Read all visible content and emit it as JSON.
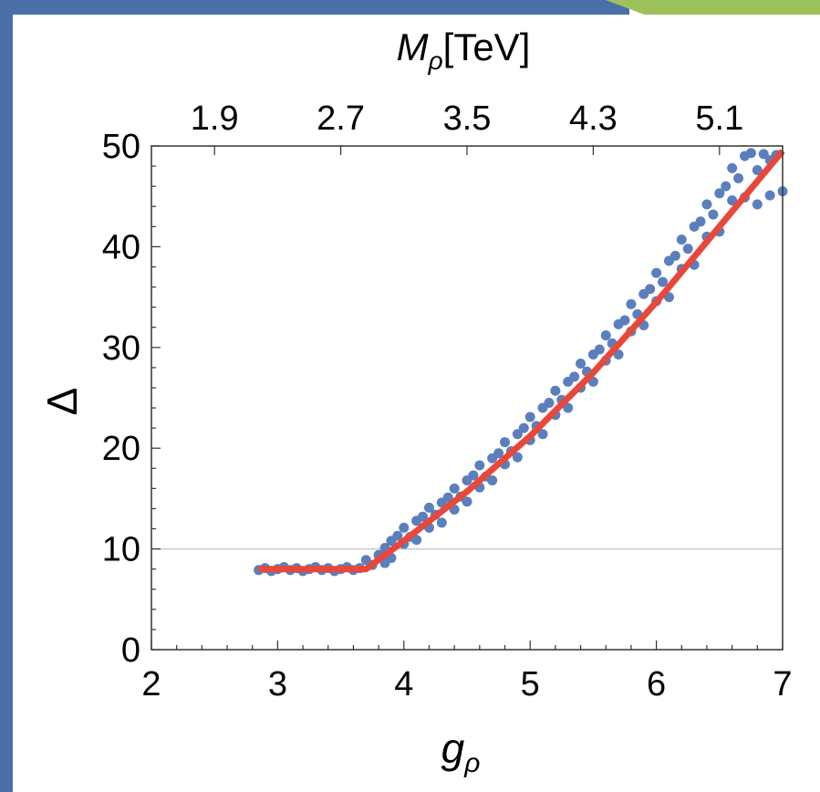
{
  "frame": {
    "side_color": "#4a6ea8",
    "accent_color": "#9dc15b"
  },
  "chart_data": {
    "type": "scatter",
    "title": "",
    "xlabel": "gρ",
    "xlabel_main": "g",
    "xlabel_sub": "ρ",
    "ylabel": "Δ",
    "top_axis_label": "Mρ[TeV]",
    "top_axis_label_main": "M",
    "top_axis_label_sub": "ρ",
    "top_axis_unit": "[TeV]",
    "xlim": [
      2,
      7
    ],
    "ylim": [
      0,
      50
    ],
    "x_ticks": [
      2,
      3,
      4,
      5,
      6,
      7
    ],
    "y_ticks": [
      0,
      10,
      20,
      30,
      40,
      50
    ],
    "top_ticks": [
      {
        "label": "1.9",
        "g": 2.5
      },
      {
        "label": "2.7",
        "g": 3.5
      },
      {
        "label": "3.5",
        "g": 4.5
      },
      {
        "label": "4.3",
        "g": 5.5
      },
      {
        "label": "5.1",
        "g": 6.5
      }
    ],
    "reference_line_y": 10,
    "grid": false,
    "point_color": "#5b7fbc",
    "fit_color": "#e8473a",
    "scatter_points": [
      [
        2.85,
        7.9
      ],
      [
        2.9,
        8.1
      ],
      [
        2.95,
        7.8
      ],
      [
        3.0,
        8.0
      ],
      [
        3.05,
        8.2
      ],
      [
        3.1,
        7.9
      ],
      [
        3.15,
        8.1
      ],
      [
        3.2,
        7.8
      ],
      [
        3.25,
        8.0
      ],
      [
        3.3,
        8.2
      ],
      [
        3.35,
        7.9
      ],
      [
        3.4,
        8.1
      ],
      [
        3.45,
        7.8
      ],
      [
        3.5,
        8.0
      ],
      [
        3.55,
        8.2
      ],
      [
        3.6,
        7.9
      ],
      [
        3.65,
        8.1
      ],
      [
        3.7,
        8.9
      ],
      [
        3.75,
        8.4
      ],
      [
        3.8,
        9.4
      ],
      [
        3.85,
        10.1
      ],
      [
        3.85,
        8.6
      ],
      [
        3.9,
        10.8
      ],
      [
        3.9,
        9.1
      ],
      [
        3.95,
        11.3
      ],
      [
        4.0,
        10.5
      ],
      [
        4.0,
        12.1
      ],
      [
        4.05,
        11.2
      ],
      [
        4.1,
        12.8
      ],
      [
        4.1,
        10.9
      ],
      [
        4.15,
        13.2
      ],
      [
        4.2,
        12.1
      ],
      [
        4.2,
        14.1
      ],
      [
        4.25,
        13.4
      ],
      [
        4.3,
        14.6
      ],
      [
        4.3,
        12.6
      ],
      [
        4.35,
        15.1
      ],
      [
        4.4,
        13.9
      ],
      [
        4.4,
        16.0
      ],
      [
        4.45,
        15.2
      ],
      [
        4.5,
        16.8
      ],
      [
        4.5,
        14.7
      ],
      [
        4.55,
        17.3
      ],
      [
        4.6,
        16.1
      ],
      [
        4.6,
        18.3
      ],
      [
        4.65,
        17.2
      ],
      [
        4.7,
        19.0
      ],
      [
        4.7,
        16.8
      ],
      [
        4.75,
        19.5
      ],
      [
        4.8,
        18.4
      ],
      [
        4.8,
        20.6
      ],
      [
        4.85,
        19.7
      ],
      [
        4.9,
        21.4
      ],
      [
        4.9,
        19.1
      ],
      [
        4.95,
        22.0
      ],
      [
        5.0,
        20.8
      ],
      [
        5.0,
        23.1
      ],
      [
        5.05,
        22.2
      ],
      [
        5.1,
        24.0
      ],
      [
        5.1,
        21.4
      ],
      [
        5.15,
        24.5
      ],
      [
        5.2,
        23.3
      ],
      [
        5.2,
        25.7
      ],
      [
        5.25,
        24.8
      ],
      [
        5.3,
        26.6
      ],
      [
        5.3,
        24.0
      ],
      [
        5.35,
        27.1
      ],
      [
        5.4,
        26.0
      ],
      [
        5.4,
        28.4
      ],
      [
        5.45,
        27.6
      ],
      [
        5.5,
        29.3
      ],
      [
        5.5,
        26.6
      ],
      [
        5.55,
        29.8
      ],
      [
        5.6,
        28.7
      ],
      [
        5.6,
        31.2
      ],
      [
        5.65,
        30.4
      ],
      [
        5.7,
        32.3
      ],
      [
        5.7,
        29.3
      ],
      [
        5.75,
        32.7
      ],
      [
        5.8,
        31.6
      ],
      [
        5.8,
        34.3
      ],
      [
        5.85,
        33.3
      ],
      [
        5.9,
        35.3
      ],
      [
        5.9,
        32.2
      ],
      [
        5.95,
        35.8
      ],
      [
        6.0,
        34.6
      ],
      [
        6.0,
        37.4
      ],
      [
        6.05,
        36.5
      ],
      [
        6.1,
        38.6
      ],
      [
        6.1,
        35.0
      ],
      [
        6.15,
        39.1
      ],
      [
        6.2,
        37.8
      ],
      [
        6.2,
        40.7
      ],
      [
        6.25,
        39.8
      ],
      [
        6.3,
        42.0
      ],
      [
        6.3,
        38.2
      ],
      [
        6.35,
        42.5
      ],
      [
        6.4,
        41.0
      ],
      [
        6.4,
        44.2
      ],
      [
        6.45,
        43.2
      ],
      [
        6.5,
        45.3
      ],
      [
        6.5,
        41.5
      ],
      [
        6.55,
        46.0
      ],
      [
        6.6,
        44.6
      ],
      [
        6.6,
        47.8
      ],
      [
        6.65,
        46.8
      ],
      [
        6.7,
        49.0
      ],
      [
        6.7,
        44.9
      ],
      [
        6.75,
        49.3
      ],
      [
        6.8,
        47.6
      ],
      [
        6.8,
        44.2
      ],
      [
        6.85,
        49.2
      ],
      [
        6.9,
        48.6
      ],
      [
        6.9,
        45.1
      ],
      [
        6.95,
        49.1
      ],
      [
        7.0,
        45.5
      ]
    ],
    "fit_curve": [
      [
        2.85,
        8.0
      ],
      [
        3.7,
        8.0
      ],
      [
        4.0,
        10.8
      ],
      [
        4.5,
        15.7
      ],
      [
        5.0,
        21.2
      ],
      [
        5.5,
        27.5
      ],
      [
        6.0,
        34.5
      ],
      [
        6.5,
        42.0
      ],
      [
        7.0,
        49.5
      ]
    ]
  }
}
